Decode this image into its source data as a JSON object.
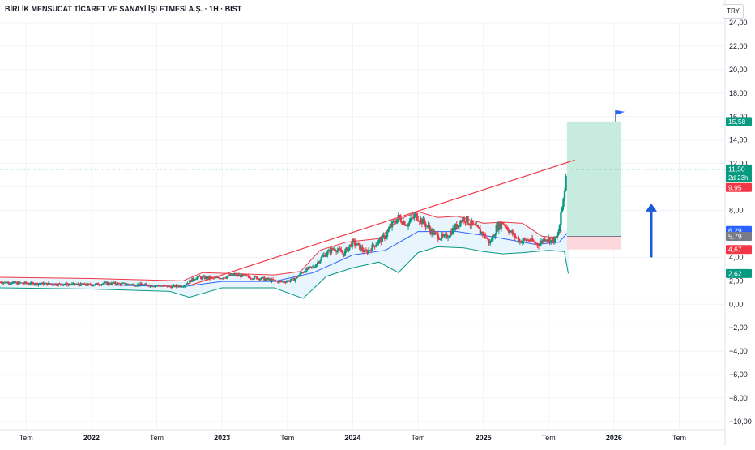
{
  "header": {
    "title": "BİRLİK MENSUCAT TİCARET VE SANAYİ İŞLETMESİ A.Ş. · 1H · BIST",
    "currency": "TRY"
  },
  "colors": {
    "up": "#089981",
    "down": "#f23645",
    "trendline": "#f23645",
    "bb_upper": "#f23645",
    "bb_lower": "#089981",
    "bb_basis": "#2962ff",
    "bb_fill": "#e3f2fd",
    "target_fill": "#c8ebe0",
    "stop_fill": "#fcd8dc",
    "arrow": "#1e5bd8",
    "flag": "#2962ff"
  },
  "chart_data": {
    "type": "candlestick",
    "x_ticks": [
      "Tem",
      "2022",
      "Tem",
      "2023",
      "Tem",
      "2024",
      "Tem",
      "2025",
      "Tem",
      "2026",
      "Tem"
    ],
    "y_ticks": [
      "24,00",
      "22,00",
      "20,00",
      "18,00",
      "16,00",
      "14,00",
      "12,00",
      "10,00",
      "8,00",
      "6,00",
      "4,00",
      "2,00",
      "0,00",
      "−2,00",
      "−4,00",
      "−6,00",
      "−8,00",
      "−10,00"
    ],
    "ylim": [
      -10,
      24
    ],
    "x_time_range": [
      2021.3,
      2026.85
    ],
    "price_series": [
      {
        "t": 2021.3,
        "v": 1.9
      },
      {
        "t": 2021.45,
        "v": 1.8
      },
      {
        "t": 2021.6,
        "v": 1.75
      },
      {
        "t": 2021.8,
        "v": 1.7
      },
      {
        "t": 2022.0,
        "v": 1.65
      },
      {
        "t": 2022.1,
        "v": 1.8
      },
      {
        "t": 2022.3,
        "v": 1.7
      },
      {
        "t": 2022.5,
        "v": 1.6
      },
      {
        "t": 2022.6,
        "v": 1.5
      },
      {
        "t": 2022.7,
        "v": 1.6
      },
      {
        "t": 2022.8,
        "v": 2.3
      },
      {
        "t": 2022.95,
        "v": 2.2
      },
      {
        "t": 2023.1,
        "v": 2.5
      },
      {
        "t": 2023.3,
        "v": 2.2
      },
      {
        "t": 2023.45,
        "v": 1.9
      },
      {
        "t": 2023.55,
        "v": 2.1
      },
      {
        "t": 2023.62,
        "v": 2.8
      },
      {
        "t": 2023.7,
        "v": 3.2
      },
      {
        "t": 2023.78,
        "v": 4.2
      },
      {
        "t": 2023.86,
        "v": 4.8
      },
      {
        "t": 2023.93,
        "v": 4.3
      },
      {
        "t": 2024.0,
        "v": 5.3
      },
      {
        "t": 2024.05,
        "v": 4.9
      },
      {
        "t": 2024.1,
        "v": 4.4
      },
      {
        "t": 2024.18,
        "v": 5.2
      },
      {
        "t": 2024.25,
        "v": 5.8
      },
      {
        "t": 2024.3,
        "v": 6.8
      },
      {
        "t": 2024.35,
        "v": 7.4
      },
      {
        "t": 2024.42,
        "v": 6.8
      },
      {
        "t": 2024.48,
        "v": 7.6
      },
      {
        "t": 2024.55,
        "v": 6.9
      },
      {
        "t": 2024.62,
        "v": 6.0
      },
      {
        "t": 2024.7,
        "v": 5.6
      },
      {
        "t": 2024.78,
        "v": 6.5
      },
      {
        "t": 2024.85,
        "v": 7.4
      },
      {
        "t": 2024.92,
        "v": 6.7
      },
      {
        "t": 2025.0,
        "v": 6.0
      },
      {
        "t": 2025.05,
        "v": 5.2
      },
      {
        "t": 2025.1,
        "v": 6.5
      },
      {
        "t": 2025.15,
        "v": 7.0
      },
      {
        "t": 2025.22,
        "v": 6.0
      },
      {
        "t": 2025.28,
        "v": 5.4
      },
      {
        "t": 2025.35,
        "v": 5.5
      },
      {
        "t": 2025.42,
        "v": 5.1
      },
      {
        "t": 2025.48,
        "v": 5.7
      },
      {
        "t": 2025.52,
        "v": 5.4
      },
      {
        "t": 2025.56,
        "v": 5.6
      },
      {
        "t": 2025.58,
        "v": 6.4
      },
      {
        "t": 2025.6,
        "v": 8.0
      },
      {
        "t": 2025.62,
        "v": 9.6
      },
      {
        "t": 2025.635,
        "v": 11.5
      }
    ],
    "bollinger_upper": [
      {
        "t": 2021.3,
        "v": 2.3
      },
      {
        "t": 2022.0,
        "v": 2.2
      },
      {
        "t": 2022.7,
        "v": 2.0
      },
      {
        "t": 2022.85,
        "v": 2.7
      },
      {
        "t": 2023.4,
        "v": 2.5
      },
      {
        "t": 2023.6,
        "v": 2.8
      },
      {
        "t": 2023.75,
        "v": 4.6
      },
      {
        "t": 2023.95,
        "v": 5.3
      },
      {
        "t": 2024.2,
        "v": 5.6
      },
      {
        "t": 2024.35,
        "v": 7.2
      },
      {
        "t": 2024.5,
        "v": 7.9
      },
      {
        "t": 2024.65,
        "v": 7.4
      },
      {
        "t": 2024.8,
        "v": 7.5
      },
      {
        "t": 2025.0,
        "v": 6.9
      },
      {
        "t": 2025.15,
        "v": 7.0
      },
      {
        "t": 2025.3,
        "v": 6.9
      },
      {
        "t": 2025.45,
        "v": 5.8
      },
      {
        "t": 2025.55,
        "v": 5.7
      },
      {
        "t": 2025.6,
        "v": 6.3
      }
    ],
    "bollinger_lower": [
      {
        "t": 2021.3,
        "v": 1.4
      },
      {
        "t": 2022.0,
        "v": 1.3
      },
      {
        "t": 2022.6,
        "v": 1.1
      },
      {
        "t": 2022.75,
        "v": 0.6
      },
      {
        "t": 2023.0,
        "v": 1.4
      },
      {
        "t": 2023.4,
        "v": 1.4
      },
      {
        "t": 2023.62,
        "v": 0.5
      },
      {
        "t": 2023.8,
        "v": 2.4
      },
      {
        "t": 2024.0,
        "v": 3.1
      },
      {
        "t": 2024.2,
        "v": 3.6
      },
      {
        "t": 2024.35,
        "v": 2.7
      },
      {
        "t": 2024.5,
        "v": 4.4
      },
      {
        "t": 2024.65,
        "v": 4.9
      },
      {
        "t": 2024.85,
        "v": 4.8
      },
      {
        "t": 2025.0,
        "v": 4.5
      },
      {
        "t": 2025.15,
        "v": 4.3
      },
      {
        "t": 2025.3,
        "v": 4.4
      },
      {
        "t": 2025.5,
        "v": 4.6
      },
      {
        "t": 2025.62,
        "v": 4.5
      },
      {
        "t": 2025.65,
        "v": 2.62
      }
    ],
    "bollinger_basis": [
      {
        "t": 2021.3,
        "v": 1.85
      },
      {
        "t": 2022.7,
        "v": 1.5
      },
      {
        "t": 2023.0,
        "v": 1.95
      },
      {
        "t": 2023.4,
        "v": 1.95
      },
      {
        "t": 2023.7,
        "v": 2.7
      },
      {
        "t": 2024.0,
        "v": 4.2
      },
      {
        "t": 2024.25,
        "v": 4.6
      },
      {
        "t": 2024.5,
        "v": 6.2
      },
      {
        "t": 2024.8,
        "v": 6.2
      },
      {
        "t": 2025.1,
        "v": 5.7
      },
      {
        "t": 2025.4,
        "v": 5.1
      },
      {
        "t": 2025.58,
        "v": 5.3
      },
      {
        "t": 2025.66,
        "v": 6.29
      }
    ],
    "trendline": [
      {
        "t": 2022.75,
        "v": 1.6
      },
      {
        "t": 2025.7,
        "v": 12.3
      }
    ],
    "long_position": {
      "t_start": 2025.64,
      "t_end": 2026.05,
      "entry": 5.79,
      "target": 15.58,
      "stop": 4.67
    },
    "current_price_line": 11.5,
    "price_labels": [
      {
        "value": 15.58,
        "text": "15,58",
        "kind": "target"
      },
      {
        "value": 11.5,
        "text": "11,50",
        "kind": "last"
      },
      {
        "value": 9.95,
        "text": "9,95",
        "kind": "high"
      },
      {
        "value": 6.29,
        "text": "6,29",
        "kind": "basis"
      },
      {
        "value": 5.79,
        "text": "5,79",
        "kind": "entry"
      },
      {
        "value": 4.67,
        "text": "4,67",
        "kind": "stop"
      },
      {
        "value": 2.62,
        "text": "2,62",
        "kind": "lower"
      }
    ],
    "last_countdown": "2d 23h",
    "grid": true
  }
}
